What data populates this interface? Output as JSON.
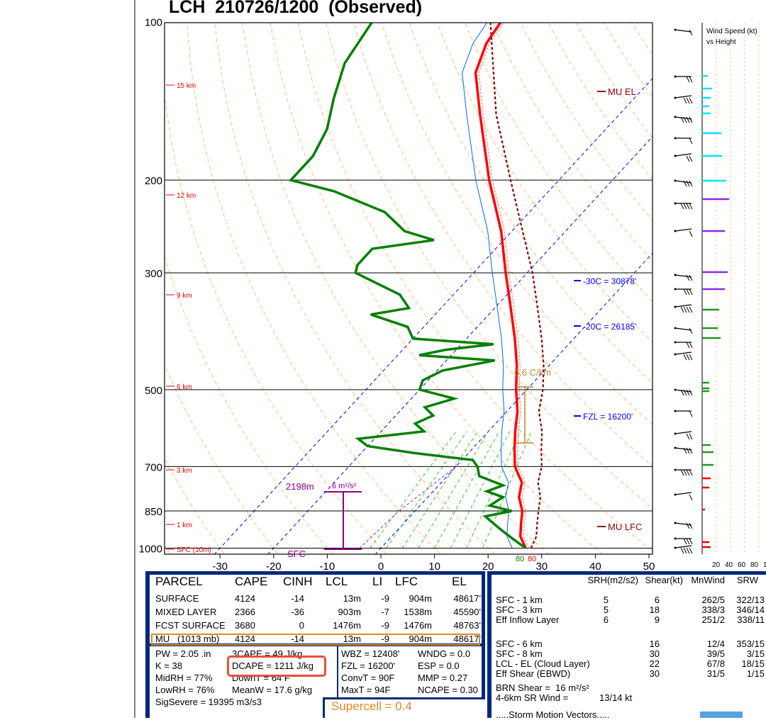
{
  "title": "LCH  210726/1200  (Observed)",
  "chart_data": {
    "type": "skew-t sounding",
    "y_axis": {
      "scale": "log pressure",
      "unit": "mb",
      "ticks": [
        100,
        200,
        300,
        500,
        700,
        850,
        1000
      ]
    },
    "x_axis": {
      "unit": "C",
      "range": [
        -30,
        50
      ],
      "ticks": [
        "-30",
        "-20",
        "-10",
        "0",
        "10",
        "20",
        "30",
        "40",
        "50"
      ]
    },
    "height_labels": [
      "15 km",
      "12 km",
      "9 km",
      "6 km",
      "3 km",
      "1 km",
      "SFC (10m)"
    ],
    "annotations": {
      "mu_el": "MU EL",
      "mu_lfc": "MU LFC",
      "t30": "-30C = 30878'",
      "t20": "-20C = 26185'",
      "fzl": "FZL = 16200'",
      "lapse": "6.6 C/km",
      "dcape_height": "2198m",
      "dcape_mag": "6 m²/s²",
      "sfc": "SFC",
      "sfc_t": "80",
      "sfc_td": "80"
    },
    "temperature_profile_C": [
      [
        1000,
        27
      ],
      [
        950,
        24
      ],
      [
        900,
        22
      ],
      [
        850,
        20
      ],
      [
        800,
        17
      ],
      [
        750,
        15
      ],
      [
        700,
        11
      ],
      [
        650,
        8
      ],
      [
        600,
        5
      ],
      [
        550,
        2
      ],
      [
        500,
        -2
      ],
      [
        450,
        -6
      ],
      [
        400,
        -11
      ],
      [
        350,
        -17
      ],
      [
        300,
        -24
      ],
      [
        250,
        -32
      ],
      [
        200,
        -43
      ],
      [
        150,
        -56
      ],
      [
        125,
        -64
      ],
      [
        110,
        -67
      ],
      [
        100,
        -68
      ]
    ],
    "dewpoint_profile_C": [
      [
        1000,
        27
      ],
      [
        960,
        23
      ],
      [
        930,
        20
      ],
      [
        900,
        17
      ],
      [
        870,
        14
      ],
      [
        850,
        18
      ],
      [
        830,
        13
      ],
      [
        800,
        14
      ],
      [
        780,
        10
      ],
      [
        760,
        12
      ],
      [
        730,
        6
      ],
      [
        700,
        4
      ],
      [
        680,
        2
      ],
      [
        660,
        -10
      ],
      [
        640,
        -20
      ],
      [
        620,
        -23
      ],
      [
        600,
        -12
      ],
      [
        580,
        -15
      ],
      [
        560,
        -13
      ],
      [
        540,
        -16
      ],
      [
        520,
        -12
      ],
      [
        500,
        -20
      ],
      [
        480,
        -21
      ],
      [
        460,
        -19
      ],
      [
        440,
        -11
      ],
      [
        430,
        -26
      ],
      [
        420,
        -22
      ],
      [
        410,
        -14
      ],
      [
        400,
        -30
      ],
      [
        380,
        -33
      ],
      [
        360,
        -42
      ],
      [
        350,
        -36
      ],
      [
        330,
        -40
      ],
      [
        300,
        -52
      ],
      [
        290,
        -53
      ],
      [
        270,
        -53
      ],
      [
        260,
        -43
      ],
      [
        250,
        -50
      ],
      [
        230,
        -57
      ],
      [
        210,
        -70
      ],
      [
        200,
        -80
      ],
      [
        180,
        -80
      ],
      [
        160,
        -82
      ],
      [
        140,
        -86
      ],
      [
        120,
        -90
      ],
      [
        100,
        -92
      ]
    ],
    "wind_speed_legend": {
      "title": "Wind Speed (kt)",
      "subtitle": "vs Height",
      "ticks": [
        "20",
        "40",
        "60",
        "80",
        "1"
      ]
    }
  },
  "parcel_table": {
    "headers": [
      "PARCEL",
      "CAPE",
      "CINH",
      "LCL",
      "LI",
      "LFC",
      "EL"
    ],
    "rows": [
      [
        "SURFACE",
        "4124",
        "-14",
        "13m",
        "-9",
        "904m",
        "48617'"
      ],
      [
        "MIXED LAYER",
        "2366",
        "-36",
        "903m",
        "-7",
        "1538m",
        "45590'"
      ],
      [
        "FCST SURFACE",
        "3680",
        "0",
        "1476m",
        "-9",
        "1476m",
        "48763'"
      ],
      [
        "MU   (1013 mb)",
        "4124",
        "-14",
        "13m",
        "-9",
        "904m",
        "48617'"
      ]
    ]
  },
  "indices": {
    "col1": [
      "PW = 2.05 .in",
      "K = 38",
      "MidRH = 77%",
      "LowRH = 76%",
      "SigSevere = 19395 m3/s3"
    ],
    "col2": [
      "3CAPE = 49 J/kg",
      "DCAPE = 1211 J/kg",
      "DownT = 64 F",
      "MeanW = 17.6 g/kg"
    ],
    "col3": [
      "WBZ = 12408'",
      "FZL = 16200'",
      "ConvT = 90F",
      "MaxT = 94F"
    ],
    "col4": [
      "WNDG = 0.0",
      "ESP = 0.0",
      "MMP = 0.27",
      "NCAPE = 0.30"
    ],
    "supercell": "Supercell = 0.4"
  },
  "shear_table": {
    "headers": [
      "SRH(m2/s2)",
      "Shear(kt)",
      "MnWind",
      "SRW"
    ],
    "group1": [
      [
        "SFC - 1 km",
        "5",
        "6",
        "262/5",
        "322/13"
      ],
      [
        "SFC - 3 km",
        "5",
        "18",
        "338/3",
        "346/14"
      ],
      [
        "Eff Inflow Layer",
        "6",
        "9",
        "251/2",
        "338/11"
      ]
    ],
    "group2": [
      [
        "SFC - 6 km",
        "",
        "16",
        "12/4",
        "353/15"
      ],
      [
        "SFC - 8 km",
        "",
        "30",
        "39/5",
        "3/15"
      ],
      [
        "LCL - EL (Cloud Layer)",
        "",
        "22",
        "67/8",
        "18/15"
      ],
      [
        "Eff Shear (EBWD)",
        "",
        "30",
        "31/5",
        "1/15"
      ]
    ],
    "brn_shear": "BRN Shear =  16 m²/s²",
    "sr_wind_label": "4-6km SR Wind =",
    "sr_wind_value": "13/14 kt",
    "storm_motion": ".....Storm Motion Vectors....."
  },
  "colors": {
    "temp": "#ff0000",
    "dewpoint": "#008000",
    "virtual": "#0066ff",
    "parcel": "#8b0000",
    "dry_adiabat": "#ffa040",
    "isotherm": "#0000ff",
    "mixing_ratio": "#00c000",
    "table_bg": "#00287a",
    "highlight": "#e8503a"
  }
}
